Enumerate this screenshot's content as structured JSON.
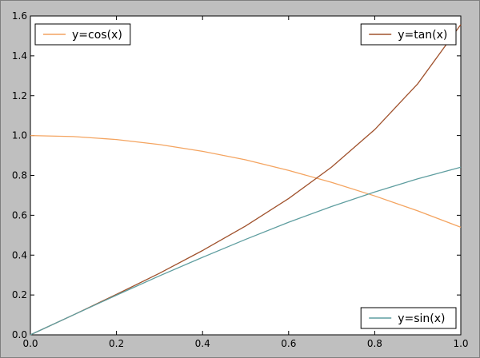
{
  "chart_data": {
    "type": "line",
    "title": "",
    "xlabel": "",
    "ylabel": "",
    "xlim": [
      0.0,
      1.0
    ],
    "ylim": [
      0.0,
      1.6
    ],
    "grid": false,
    "xticks": [
      "0.0",
      "0.2",
      "0.4",
      "0.6",
      "0.8",
      "1.0"
    ],
    "yticks": [
      "0.0",
      "0.2",
      "0.4",
      "0.6",
      "0.8",
      "1.0",
      "1.2",
      "1.4",
      "1.6"
    ],
    "series": [
      {
        "name": "y=cos(x)",
        "color": "#f4a460",
        "legend_position": "top-left",
        "x": [
          0.0,
          0.1,
          0.2,
          0.3,
          0.4,
          0.5,
          0.6,
          0.7,
          0.8,
          0.9,
          1.0
        ],
        "y": [
          1.0,
          0.995,
          0.98,
          0.955,
          0.921,
          0.878,
          0.825,
          0.765,
          0.697,
          0.622,
          0.54
        ]
      },
      {
        "name": "y=tan(x)",
        "color": "#a0522d",
        "legend_position": "top-right",
        "x": [
          0.0,
          0.1,
          0.2,
          0.3,
          0.4,
          0.5,
          0.6,
          0.7,
          0.8,
          0.9,
          1.0
        ],
        "y": [
          0.0,
          0.1,
          0.203,
          0.309,
          0.423,
          0.546,
          0.684,
          0.842,
          1.03,
          1.26,
          1.557
        ]
      },
      {
        "name": "y=sin(x)",
        "color": "#5f9ea0",
        "legend_position": "bottom-right",
        "x": [
          0.0,
          0.1,
          0.2,
          0.3,
          0.4,
          0.5,
          0.6,
          0.7,
          0.8,
          0.9,
          1.0
        ],
        "y": [
          0.0,
          0.1,
          0.199,
          0.296,
          0.389,
          0.479,
          0.565,
          0.644,
          0.717,
          0.783,
          0.841
        ]
      }
    ]
  }
}
